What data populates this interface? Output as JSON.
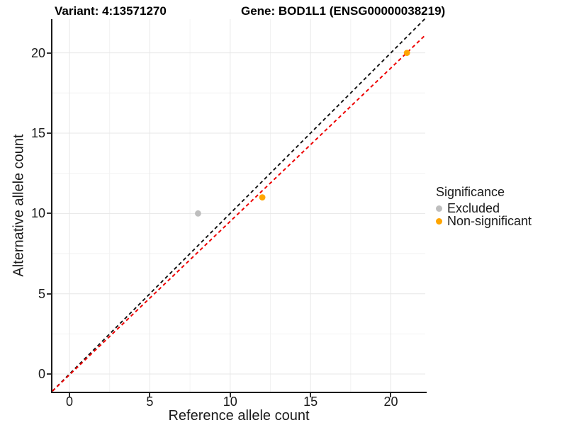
{
  "titles": {
    "variant": "Variant: 4:13571270",
    "gene": "Gene: BOD1L1 (ENSG00000038219)"
  },
  "chart_data": {
    "type": "scatter",
    "titles": [
      "Variant: 4:13571270",
      "Gene: BOD1L1 (ENSG00000038219)"
    ],
    "xlabel": "Reference allele count",
    "ylabel": "Alternative allele count",
    "xlim": [
      -1.06,
      22.14
    ],
    "ylim": [
      -1.1,
      22.1
    ],
    "x_major_ticks": [
      0,
      5,
      10,
      15,
      20
    ],
    "y_major_ticks": [
      0,
      5,
      10,
      15,
      20
    ],
    "x_minor_gridlines": [
      2.5,
      7.5,
      12.5,
      17.5
    ],
    "y_minor_gridlines": [
      2.5,
      7.5,
      12.5,
      17.5
    ],
    "grid": "major and minor, light gray on white",
    "legend_position": "right",
    "legend": {
      "title": "Significance",
      "items": [
        {
          "label": "Excluded",
          "color": "#bebebe"
        },
        {
          "label": "Non-significant",
          "color": "#ffa500"
        }
      ]
    },
    "series": [
      {
        "name": "Excluded",
        "color": "#bebebe",
        "points": [
          [
            8,
            10
          ]
        ]
      },
      {
        "name": "Non-significant",
        "color": "#ffa500",
        "points": [
          [
            12,
            11
          ],
          [
            21,
            20
          ]
        ]
      }
    ],
    "lines": [
      {
        "name": "identity-line",
        "color": "#1a1a1a",
        "dash": true,
        "from": [
          -1.06,
          -1.06
        ],
        "to": [
          22.14,
          22.14
        ]
      },
      {
        "name": "fit-line",
        "color": "#ee0000",
        "dash": true,
        "from": [
          -1.06,
          -1.06
        ],
        "to": [
          22.14,
          21.1
        ]
      }
    ]
  },
  "colors": {
    "background": "#ffffff",
    "axis_line": "#1a1a1a",
    "major_grid": "#e7e7e7",
    "minor_grid": "#f2f2f2",
    "excluded_point": "#bebebe",
    "nonsignificant_point": "#ffa500",
    "red_dashed_line": "#ee0000",
    "black_dashed_line": "#1a1a1a"
  }
}
